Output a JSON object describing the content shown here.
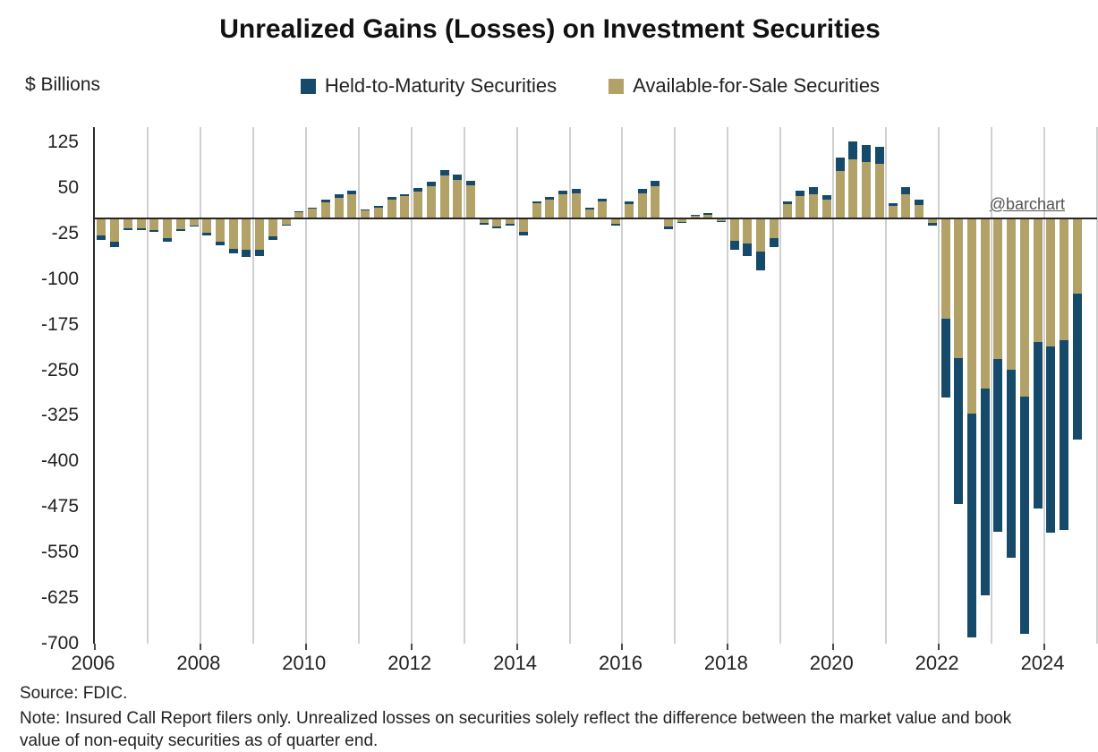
{
  "title": "Unrealized Gains (Losses) on Investment Securities",
  "y_axis_label": "$ Billions",
  "watermark": "@barchart",
  "source": "Source: FDIC.",
  "note": "Note: Insured Call Report filers only. Unrealized losses on securities solely reflect the difference between the market value and book value of non-equity securities as of quarter end.",
  "legend": [
    {
      "label": "Held-to-Maturity Securities",
      "color": "#154a6b"
    },
    {
      "label": "Available-for-Sale Securities",
      "color": "#b3a268"
    }
  ],
  "chart_data": {
    "type": "bar",
    "stacked": true,
    "title": "Unrealized Gains (Losses) on Investment Securities",
    "ylabel": "$ Billions",
    "ylim": [
      -700,
      150
    ],
    "grid": "vertical-yearly",
    "legend_position": "top-center",
    "y_ticks": [
      125,
      50,
      -25,
      -100,
      -175,
      -250,
      -325,
      -400,
      -475,
      -550,
      -625,
      -700
    ],
    "x_tick_labels": [
      "2006",
      "2008",
      "2010",
      "2012",
      "2014",
      "2016",
      "2018",
      "2020",
      "2022",
      "2024"
    ],
    "categories": [
      "2006 Q1",
      "2006 Q2",
      "2006 Q3",
      "2006 Q4",
      "2007 Q1",
      "2007 Q2",
      "2007 Q3",
      "2007 Q4",
      "2008 Q1",
      "2008 Q2",
      "2008 Q3",
      "2008 Q4",
      "2009 Q1",
      "2009 Q2",
      "2009 Q3",
      "2009 Q4",
      "2010 Q1",
      "2010 Q2",
      "2010 Q3",
      "2010 Q4",
      "2011 Q1",
      "2011 Q2",
      "2011 Q3",
      "2011 Q4",
      "2012 Q1",
      "2012 Q2",
      "2012 Q3",
      "2012 Q4",
      "2013 Q1",
      "2013 Q2",
      "2013 Q3",
      "2013 Q4",
      "2014 Q1",
      "2014 Q2",
      "2014 Q3",
      "2014 Q4",
      "2015 Q1",
      "2015 Q2",
      "2015 Q3",
      "2015 Q4",
      "2016 Q1",
      "2016 Q2",
      "2016 Q3",
      "2016 Q4",
      "2017 Q1",
      "2017 Q2",
      "2017 Q3",
      "2017 Q4",
      "2018 Q1",
      "2018 Q2",
      "2018 Q3",
      "2018 Q4",
      "2019 Q1",
      "2019 Q2",
      "2019 Q3",
      "2019 Q4",
      "2020 Q1",
      "2020 Q2",
      "2020 Q3",
      "2020 Q4",
      "2021 Q1",
      "2021 Q2",
      "2021 Q3",
      "2021 Q4",
      "2022 Q1",
      "2022 Q2",
      "2022 Q3",
      "2022 Q4",
      "2023 Q1",
      "2023 Q2",
      "2023 Q3",
      "2023 Q4",
      "2024 Q1",
      "2024 Q2",
      "2024 Q3"
    ],
    "series": [
      {
        "name": "Held-to-Maturity Securities",
        "color": "#154a6b",
        "values": [
          -7,
          -10,
          -3,
          -3,
          -3,
          -6,
          -3,
          -2,
          -4,
          -6,
          -8,
          -12,
          -10,
          -5,
          -2,
          1,
          2,
          4,
          6,
          6,
          2,
          3,
          4,
          4,
          6,
          7,
          10,
          9,
          8,
          -2,
          -3,
          -3,
          -6,
          3,
          5,
          6,
          7,
          3,
          4,
          -3,
          4,
          7,
          9,
          -4,
          -2,
          1,
          2,
          -1,
          -15,
          -20,
          -30,
          -15,
          5,
          9,
          12,
          8,
          22,
          30,
          28,
          28,
          5,
          12,
          8,
          -4,
          -130,
          -240,
          -368,
          -340,
          -284,
          -310,
          -391,
          -274,
          -306,
          -313,
          -240
        ]
      },
      {
        "name": "Available-for-Sale Securities",
        "color": "#b3a268",
        "values": [
          -28,
          -38,
          -16,
          -16,
          -20,
          -32,
          -18,
          -12,
          -24,
          -38,
          -50,
          -52,
          -52,
          -30,
          -10,
          11,
          16,
          26,
          34,
          40,
          13,
          17,
          31,
          36,
          44,
          53,
          70,
          63,
          54,
          -8,
          -13,
          -9,
          -22,
          25,
          30,
          39,
          41,
          15,
          28,
          -9,
          24,
          41,
          53,
          -14,
          -6,
          5,
          6,
          -4,
          -37,
          -42,
          -55,
          -33,
          23,
          36,
          40,
          30,
          78,
          97,
          92,
          90,
          20,
          40,
          22,
          -8,
          -165,
          -230,
          -322,
          -280,
          -232,
          -249,
          -293,
          -204,
          -211,
          -200,
          -124
        ]
      }
    ]
  }
}
